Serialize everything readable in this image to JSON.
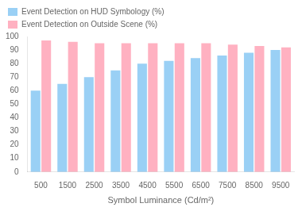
{
  "chart_data": {
    "type": "bar",
    "categories": [
      500,
      1500,
      2500,
      3500,
      4500,
      5500,
      6500,
      7500,
      8500,
      9500
    ],
    "series": [
      {
        "name": "Event Detection on HUD Symbology (%)",
        "values": [
          60,
          65,
          70,
          75,
          80,
          82,
          84,
          86,
          88,
          90
        ]
      },
      {
        "name": "Event Detection on Outside Scene (%)",
        "values": [
          97,
          96,
          95,
          95,
          95,
          95,
          95,
          94,
          93,
          92
        ]
      }
    ],
    "xlabel": "Symbol Luminance (Cd/m²)",
    "ylim": [
      0,
      100
    ],
    "yticks": [
      0,
      10,
      20,
      30,
      40,
      50,
      60,
      70,
      80,
      90,
      100
    ],
    "grid": false,
    "legend": "upper left"
  }
}
